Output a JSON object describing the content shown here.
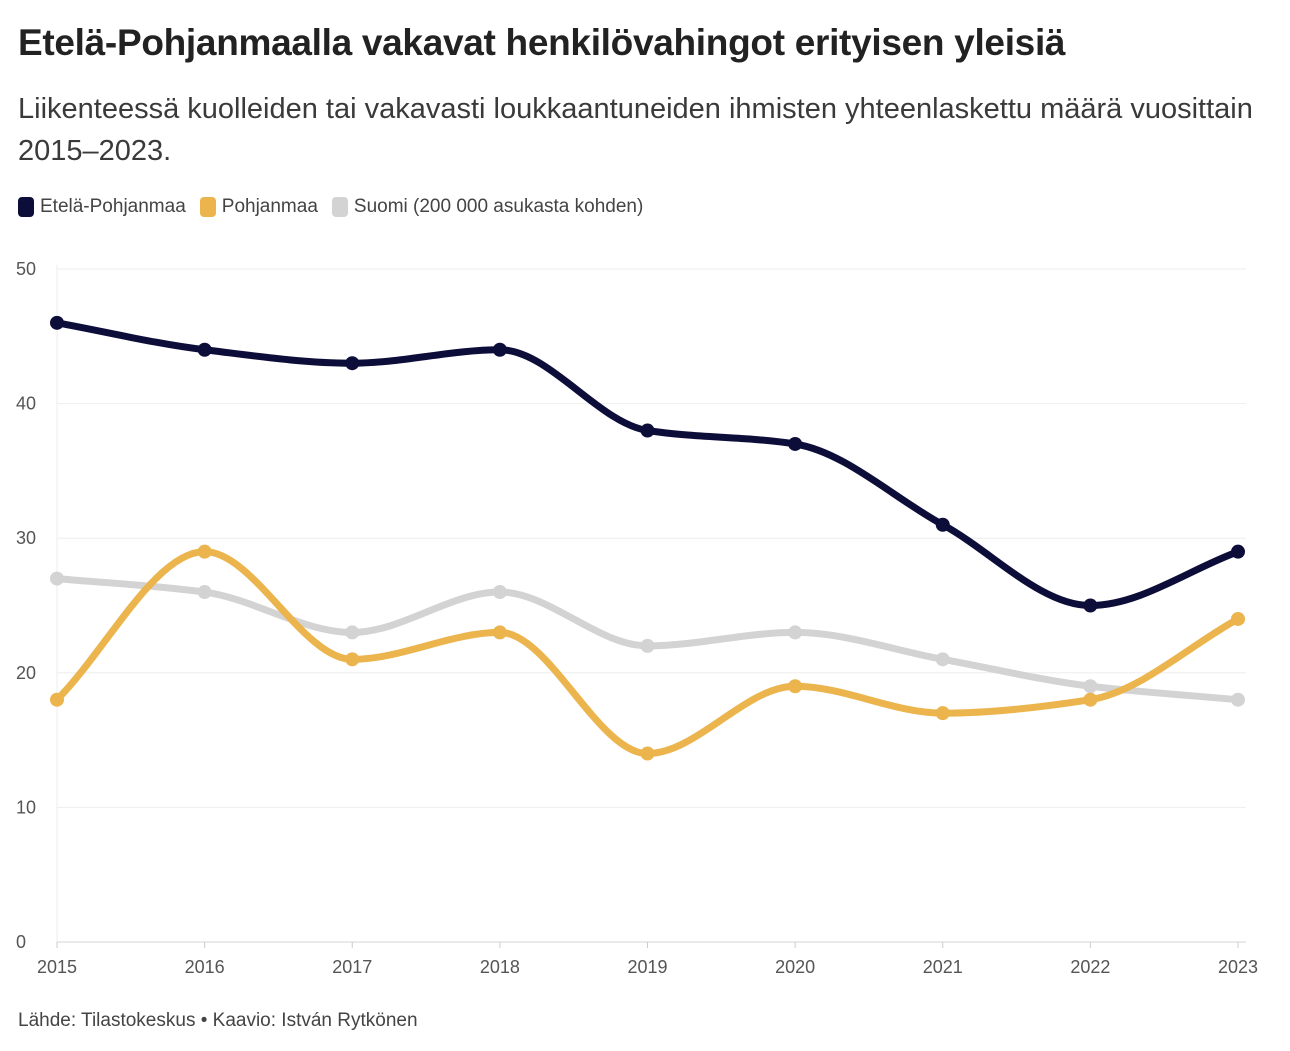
{
  "chart_data": {
    "type": "line",
    "title": "Etelä-Pohjanmaalla vakavat henkilövahingot erityisen yleisiä",
    "subtitle": "Liikenteessä kuolleiden tai vakavasti loukkaantuneiden ihmisten yhteenlaskettu määrä vuosittain 2015–2023.",
    "x": [
      "2015",
      "2016",
      "2017",
      "2018",
      "2019",
      "2020",
      "2021",
      "2022",
      "2023"
    ],
    "series": [
      {
        "name": "Etelä-Pohjanmaa",
        "color": "#0d0d3a",
        "values": [
          46,
          44,
          43,
          44,
          38,
          37,
          31,
          25,
          29
        ]
      },
      {
        "name": "Pohjanmaa",
        "color": "#ebb44c",
        "values": [
          18,
          29,
          21,
          23,
          14,
          19,
          17,
          18,
          24
        ]
      },
      {
        "name": "Suomi (200 000 asukasta kohden)",
        "color": "#d3d3d3",
        "values": [
          27,
          26,
          23,
          26,
          22,
          23,
          21,
          19,
          18
        ]
      }
    ],
    "yticks": [
      "0",
      "10",
      "20",
      "30",
      "40",
      "50"
    ],
    "ylim": [
      0,
      50
    ],
    "xlabel": "",
    "ylabel": "",
    "grid": true,
    "legend_position": "top-left"
  },
  "footer": "Lähde: Tilastokeskus • Kaavio: István Rytkönen"
}
